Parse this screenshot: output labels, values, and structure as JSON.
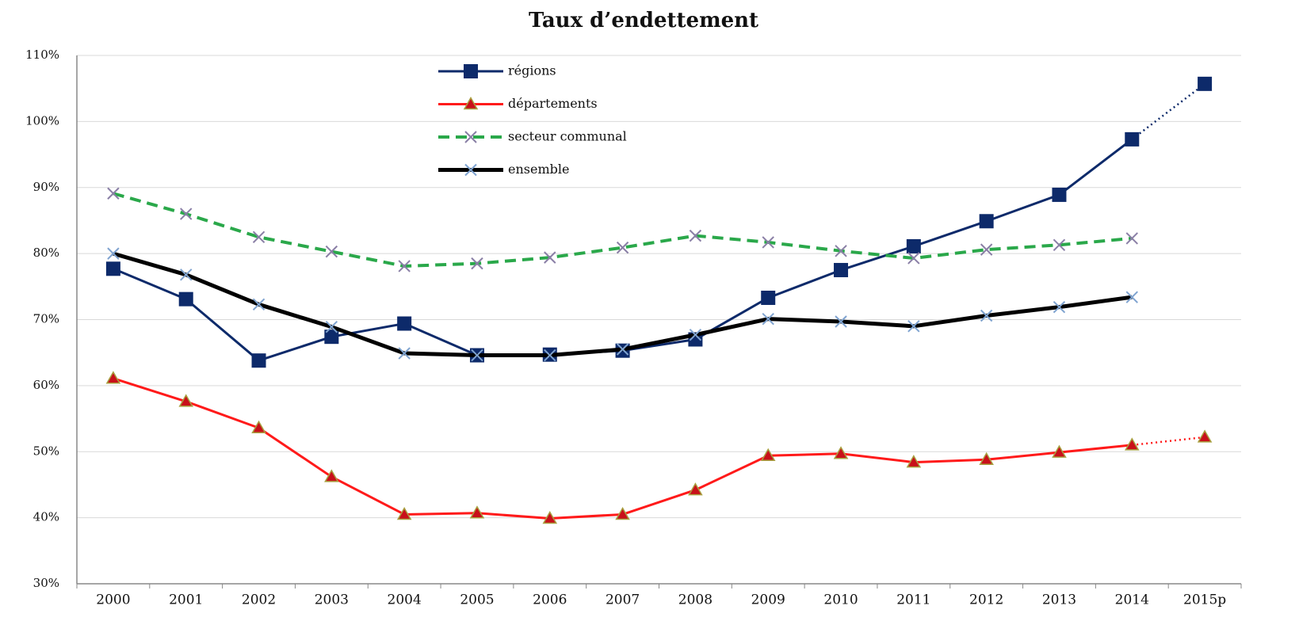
{
  "chart_data": {
    "type": "line",
    "title": "Taux d’endettement",
    "categories": [
      "2000",
      "2001",
      "2002",
      "2003",
      "2004",
      "2005",
      "2006",
      "2007",
      "2008",
      "2009",
      "2010",
      "2011",
      "2012",
      "2013",
      "2014",
      "2015p"
    ],
    "projection_start": 15,
    "series": [
      {
        "name": "régions",
        "color": "#0d2a6a",
        "marker": "square",
        "marker_color": "#0d2a6a",
        "dash": "solid",
        "line_width": 3,
        "values": [
          77.7,
          73.1,
          63.8,
          67.4,
          69.4,
          64.6,
          64.7,
          65.3,
          67.0,
          73.3,
          77.5,
          81.1,
          84.9,
          88.9,
          97.3,
          105.7
        ]
      },
      {
        "name": "départements",
        "color": "#ff1a1a",
        "marker": "triangle",
        "marker_color": "#c8101a",
        "dash": "solid",
        "line_width": 3,
        "values": [
          61.1,
          57.6,
          53.6,
          46.2,
          40.5,
          40.7,
          39.9,
          40.5,
          44.2,
          49.4,
          49.7,
          48.4,
          48.8,
          49.9,
          51.0,
          52.2
        ]
      },
      {
        "name": "secteur communal",
        "color": "#2aa84a",
        "marker": "x",
        "marker_color": "#8a7fa6",
        "dash": "dashed",
        "line_width": 4,
        "values": [
          89.1,
          86.0,
          82.5,
          80.3,
          78.1,
          78.5,
          79.4,
          80.9,
          82.7,
          81.7,
          80.4,
          79.3,
          80.6,
          81.3,
          82.3,
          null
        ]
      },
      {
        "name": "ensemble",
        "color": "#000000",
        "marker": "x",
        "marker_color": "#7fa3d0",
        "dash": "solid",
        "line_width": 5,
        "values": [
          80.0,
          76.8,
          72.3,
          68.9,
          64.9,
          64.6,
          64.6,
          65.5,
          67.7,
          70.1,
          69.7,
          69.0,
          70.6,
          71.9,
          73.4,
          null
        ]
      }
    ],
    "ylim": [
      30,
      110
    ],
    "yticks": [
      {
        "value": 30,
        "label": "30%"
      },
      {
        "value": 40,
        "label": "40%"
      },
      {
        "value": 50,
        "label": "50%"
      },
      {
        "value": 60,
        "label": "60%"
      },
      {
        "value": 70,
        "label": "70%"
      },
      {
        "value": 80,
        "label": "80%"
      },
      {
        "value": 90,
        "label": "90%"
      },
      {
        "value": 100,
        "label": "100%"
      },
      {
        "value": 110,
        "label": "110%"
      }
    ],
    "grid": true,
    "legend": "top-center"
  }
}
